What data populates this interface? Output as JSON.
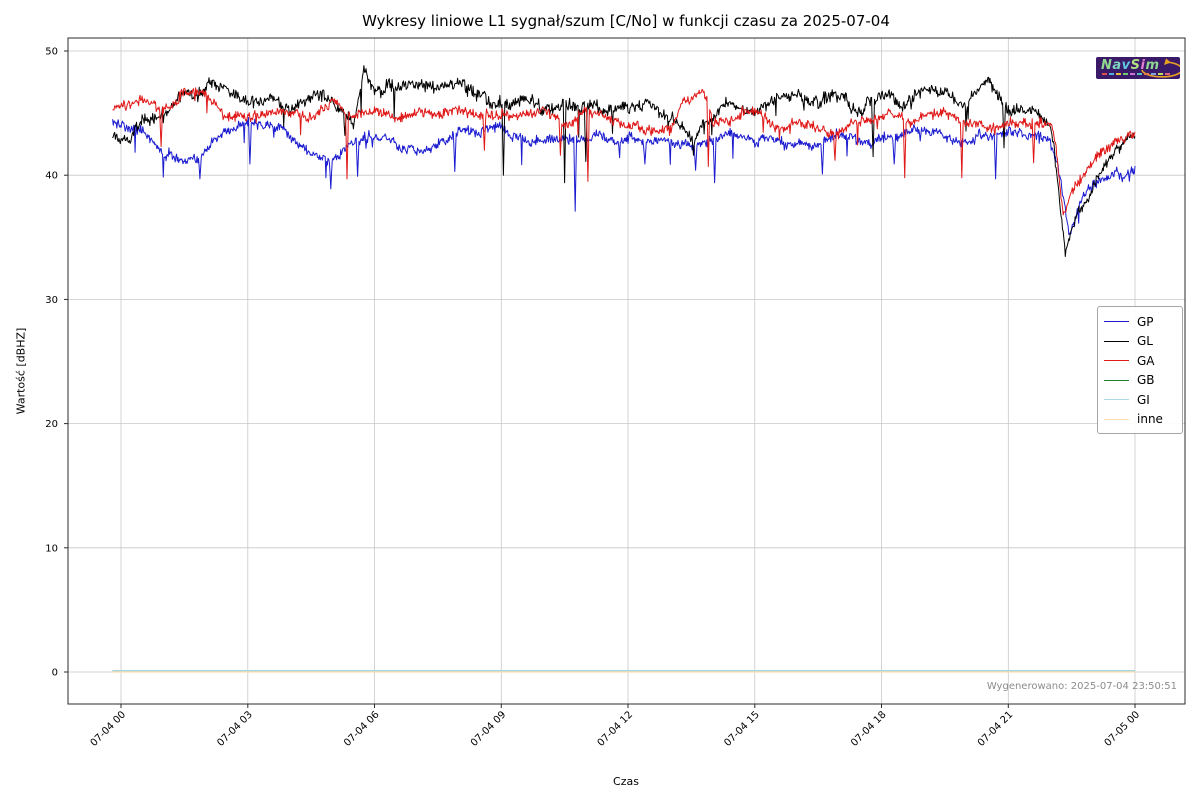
{
  "title": "Wykresy liniowe L1 sygnał/szum [C/No] w funkcji czasu za 2025-07-04",
  "generated_label": "Wygenerowano: 2025-07-04 23:50:51",
  "watermark": {
    "text": "NavSim",
    "bg_color": "#3a1a68",
    "letter_colors": [
      "#8fd98f",
      "#7fd4c0",
      "#5fc8e0",
      "#b0e080",
      "#e080d0",
      "#90d890"
    ],
    "swoosh_color": "#e8a020",
    "sub_colors": [
      "#e05050",
      "#50b0e0",
      "#e0c040",
      "#70d070",
      "#d070d0",
      "#50c0c0",
      "#e08040",
      "#80a0e0",
      "#c0e060",
      "#e06080"
    ]
  },
  "chart_data": {
    "type": "line",
    "title": "Wykresy liniowe L1 sygnał/szum [C/No] w funkcji czasu za 2025-07-04",
    "xlabel": "Czas",
    "ylabel": "Wartość [dBHZ]",
    "grid": true,
    "grid_color": "#c8c8c8",
    "spine_color": "#2b2b2b",
    "legend_position": "right",
    "ylim": [
      -2.7,
      51.2
    ],
    "yticks": [
      0,
      10,
      20,
      30,
      40,
      50
    ],
    "xticks": [
      {
        "hour": 0,
        "label": "07-04 00"
      },
      {
        "hour": 3,
        "label": "07-04 03"
      },
      {
        "hour": 6,
        "label": "07-04 06"
      },
      {
        "hour": 9,
        "label": "07-04 09"
      },
      {
        "hour": 12,
        "label": "07-04 12"
      },
      {
        "hour": 15,
        "label": "07-04 15"
      },
      {
        "hour": 18,
        "label": "07-04 18"
      },
      {
        "hour": 21,
        "label": "07-04 21"
      },
      {
        "hour": 24,
        "label": "07-05 00"
      }
    ],
    "series": [
      {
        "name": "GP",
        "color": "#1b1bd0",
        "width": 1,
        "noise": 0.45,
        "wander": 0.26,
        "dip_prob": 0.012,
        "dip_depth": 2.0,
        "points": [
          [
            0,
            44.2
          ],
          [
            0.5,
            43.6
          ],
          [
            1,
            42.0
          ],
          [
            1.5,
            41.3
          ],
          [
            2,
            42.3
          ],
          [
            2.5,
            43.6
          ],
          [
            3,
            44.2
          ],
          [
            3.5,
            43.9
          ],
          [
            4,
            43.0
          ],
          [
            4.5,
            42.3
          ],
          [
            5,
            41.8
          ],
          [
            5.5,
            42.8
          ],
          [
            6,
            43.4
          ],
          [
            6.5,
            42.7
          ],
          [
            7,
            41.6
          ],
          [
            7.5,
            42.9
          ],
          [
            8,
            43.4
          ],
          [
            8.5,
            43.2
          ],
          [
            9,
            43.5
          ],
          [
            9.5,
            43.0
          ],
          [
            10,
            42.7
          ],
          [
            10.5,
            43.1
          ],
          [
            11,
            42.4
          ],
          [
            11.5,
            43.0
          ],
          [
            12,
            43.1
          ],
          [
            12.5,
            42.7
          ],
          [
            13,
            42.4
          ],
          [
            13.5,
            42.2
          ],
          [
            14,
            43.1
          ],
          [
            14.5,
            43.0
          ],
          [
            15,
            42.5
          ],
          [
            15.5,
            43.2
          ],
          [
            16,
            42.7
          ],
          [
            16.5,
            43.0
          ],
          [
            17,
            43.3
          ],
          [
            17.5,
            43.0
          ],
          [
            18,
            43.4
          ],
          [
            18.5,
            43.2
          ],
          [
            19,
            43.7
          ],
          [
            19.5,
            43.2
          ],
          [
            20,
            42.8
          ],
          [
            20.5,
            43.4
          ],
          [
            21,
            43.7
          ],
          [
            21.5,
            43.2
          ],
          [
            22,
            43.0
          ],
          [
            22.15,
            41.5
          ],
          [
            22.45,
            35.3
          ],
          [
            22.7,
            37.5
          ],
          [
            23,
            39.0
          ],
          [
            23.3,
            39.8
          ],
          [
            23.6,
            40.3
          ],
          [
            24,
            40.8
          ]
        ],
        "spikes": [
          [
            1.87,
            39.7
          ],
          [
            3.05,
            40.9
          ],
          [
            4.97,
            38.9
          ],
          [
            5.6,
            39.9
          ],
          [
            7.9,
            40.3
          ],
          [
            10.75,
            37.1
          ],
          [
            12.4,
            40.9
          ],
          [
            13.6,
            40.4
          ],
          [
            14.05,
            39.4
          ],
          [
            16.6,
            40.1
          ],
          [
            18.3,
            40.9
          ],
          [
            20.7,
            39.7
          ]
        ]
      },
      {
        "name": "GL",
        "color": "#000000",
        "width": 1,
        "noise": 0.55,
        "wander": 0.3,
        "dip_prob": 0.01,
        "dip_depth": 2.2,
        "points": [
          [
            0,
            43.0
          ],
          [
            0.5,
            44.6
          ],
          [
            1,
            45.4
          ],
          [
            1.5,
            46.2
          ],
          [
            2,
            47.2
          ],
          [
            2.5,
            47.0
          ],
          [
            3,
            45.6
          ],
          [
            3.5,
            45.9
          ],
          [
            4,
            45.1
          ],
          [
            4.5,
            46.4
          ],
          [
            5,
            45.9
          ],
          [
            5.5,
            44.2
          ],
          [
            5.75,
            48.2
          ],
          [
            6,
            47.0
          ],
          [
            6.5,
            46.9
          ],
          [
            7,
            47.1
          ],
          [
            7.5,
            46.4
          ],
          [
            8,
            47.6
          ],
          [
            8.5,
            46.0
          ],
          [
            9,
            45.7
          ],
          [
            9.5,
            46.1
          ],
          [
            10,
            45.4
          ],
          [
            10.5,
            45.8
          ],
          [
            11,
            45.1
          ],
          [
            11.5,
            44.9
          ],
          [
            12,
            45.1
          ],
          [
            12.5,
            45.6
          ],
          [
            13,
            44.1
          ],
          [
            13.5,
            42.9
          ],
          [
            14,
            44.6
          ],
          [
            14.5,
            46.2
          ],
          [
            15,
            45.4
          ],
          [
            15.5,
            45.8
          ],
          [
            16,
            46.1
          ],
          [
            16.5,
            45.5
          ],
          [
            17,
            46.0
          ],
          [
            17.5,
            45.3
          ],
          [
            18,
            46.4
          ],
          [
            18.5,
            45.5
          ],
          [
            19,
            46.7
          ],
          [
            19.5,
            46.1
          ],
          [
            20,
            45.0
          ],
          [
            20.5,
            46.7
          ],
          [
            21,
            44.9
          ],
          [
            21.5,
            45.2
          ],
          [
            22,
            44.3
          ],
          [
            22.1,
            42.0
          ],
          [
            22.35,
            33.4
          ],
          [
            22.55,
            35.8
          ],
          [
            22.8,
            37.5
          ],
          [
            23,
            38.8
          ],
          [
            23.3,
            40.5
          ],
          [
            23.6,
            42.0
          ],
          [
            24,
            43.2
          ]
        ],
        "spikes": [
          [
            5.3,
            43.2
          ],
          [
            9.05,
            40.0
          ],
          [
            10.5,
            39.4
          ],
          [
            11.0,
            41.1
          ],
          [
            13.55,
            41.6
          ],
          [
            17.8,
            41.5
          ],
          [
            20.9,
            42.2
          ]
        ]
      },
      {
        "name": "GA",
        "color": "#e01818",
        "width": 1,
        "noise": 0.45,
        "wander": 0.22,
        "dip_prob": 0.007,
        "dip_depth": 1.8,
        "points": [
          [
            0,
            45.2
          ],
          [
            0.5,
            45.7
          ],
          [
            1,
            45.0
          ],
          [
            1.5,
            46.6
          ],
          [
            2,
            46.4
          ],
          [
            2.5,
            44.9
          ],
          [
            3,
            44.8
          ],
          [
            3.5,
            45.0
          ],
          [
            4,
            44.8
          ],
          [
            4.5,
            44.5
          ],
          [
            5,
            45.9
          ],
          [
            5.5,
            44.6
          ],
          [
            6,
            45.0
          ],
          [
            6.5,
            44.6
          ],
          [
            7,
            45.1
          ],
          [
            7.5,
            44.8
          ],
          [
            8,
            45.4
          ],
          [
            8.5,
            44.6
          ],
          [
            9,
            44.8
          ],
          [
            9.5,
            45.0
          ],
          [
            10,
            45.4
          ],
          [
            10.5,
            44.1
          ],
          [
            11,
            45.2
          ],
          [
            11.5,
            44.5
          ],
          [
            12,
            44.1
          ],
          [
            12.5,
            43.8
          ],
          [
            13,
            44.2
          ],
          [
            13.3,
            46.3
          ],
          [
            13.8,
            46.6
          ],
          [
            14,
            44.1
          ],
          [
            14.5,
            44.3
          ],
          [
            15,
            45.1
          ],
          [
            15.5,
            44.5
          ],
          [
            16,
            44.7
          ],
          [
            16.5,
            44.2
          ],
          [
            17,
            44.0
          ],
          [
            17.5,
            44.5
          ],
          [
            18,
            45.0
          ],
          [
            18.5,
            44.6
          ],
          [
            19,
            44.5
          ],
          [
            19.5,
            44.7
          ],
          [
            20,
            44.2
          ],
          [
            20.5,
            44.0
          ],
          [
            21,
            44.5
          ],
          [
            21.5,
            43.8
          ],
          [
            22,
            44.2
          ],
          [
            22.1,
            42.8
          ],
          [
            22.3,
            36.9
          ],
          [
            22.5,
            38.8
          ],
          [
            22.8,
            40.0
          ],
          [
            23.1,
            41.2
          ],
          [
            23.5,
            42.3
          ],
          [
            24,
            43.4
          ]
        ],
        "spikes": [
          [
            0.95,
            42.3
          ],
          [
            5.35,
            39.7
          ],
          [
            8.6,
            42.0
          ],
          [
            10.4,
            41.6
          ],
          [
            11.05,
            39.5
          ],
          [
            13.9,
            40.7
          ],
          [
            16.9,
            41.2
          ],
          [
            18.55,
            39.8
          ],
          [
            19.9,
            39.8
          ],
          [
            21.6,
            41.0
          ]
        ]
      },
      {
        "name": "GB",
        "color": "#1f7d2f",
        "width": 2.2,
        "constant": 0.05
      },
      {
        "name": "GI",
        "color": "#add8e6",
        "width": 1.4,
        "constant": 0.1
      },
      {
        "name": "inne",
        "color": "#ffdead",
        "width": 1.2,
        "constant": 0.0
      }
    ]
  }
}
